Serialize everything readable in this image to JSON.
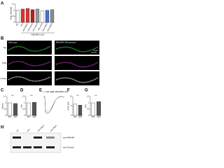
{
  "panels": {
    "A": {
      "label": "A",
      "ylabel": "Norm. amplitude",
      "categories": [
        "WT",
        "cKO",
        "cKO+RBP2",
        "cKO+ΔSH3",
        "cKO+ΔFN3",
        "cKO+SH3",
        "cKO+RBP1",
        "cKO+RBP3"
      ],
      "colors": [
        "#ffffff",
        "#e3342f",
        "#e3342f",
        "#b22222",
        "#9a9a9a",
        "#ffffff",
        "#4a6fd1",
        "#8c8c8c"
      ],
      "values": [
        1.0,
        1.1,
        1.15,
        1.05,
        1.1,
        0.95,
        1.0,
        1.05
      ],
      "ylim": [
        0,
        1.5
      ],
      "yticks": [
        0,
        0.5,
        1,
        1.5
      ],
      "group": "RIM-BP2 cKO"
    },
    "B": {
      "label": "B",
      "left_title": "Wild type",
      "right_title": "RIM-BP2 fl/fl (rescue)",
      "scale": "5 µm",
      "row_labels": [
        "Syt",
        "PSD",
        "merge"
      ]
    },
    "C": {
      "label": "C",
      "ylabel": "Puncta",
      "categories": [
        "WT",
        "cKO"
      ],
      "colors": [
        "#ffffff",
        "#555555"
      ],
      "values": [
        1.0,
        0.95
      ],
      "ylim": [
        0,
        1.5
      ],
      "yticks": [
        0,
        0.5,
        1,
        1.5
      ],
      "sig": "n.s."
    },
    "D": {
      "label": "D",
      "ylabel": "Size",
      "categories": [
        "WT",
        "cKO"
      ],
      "colors": [
        "#ffffff",
        "#555555"
      ],
      "values": [
        1.0,
        1.05
      ],
      "ylim": [
        0,
        1.5
      ],
      "yticks": [
        0,
        0.5,
        1,
        1.5
      ],
      "sig": "n.s."
    },
    "E": {
      "label": "E",
      "legend": [
        "wild type",
        "RIM-BP2 cKO"
      ]
    },
    "F": {
      "label": "F",
      "ylabel": "EPSC (nA)",
      "categories": [
        "WT",
        "cKO"
      ],
      "colors": [
        "#ffffff",
        "#555555"
      ],
      "values": [
        6,
        5.5
      ],
      "ylim": [
        0,
        10
      ],
      "yticks": [
        0,
        5,
        10
      ],
      "sig": "n.s."
    },
    "G": {
      "label": "G",
      "ylabel": "PPR",
      "categories": [
        "WT",
        "cKO"
      ],
      "colors": [
        "#ffffff",
        "#555555"
      ],
      "values": [
        1.0,
        1.1
      ],
      "ylim": [
        0,
        1.5
      ],
      "yticks": [
        0,
        0.5,
        1,
        1.5
      ],
      "sig": "n.s."
    },
    "H": {
      "label": "H",
      "lanes": [
        "WT",
        "cKO",
        "cKO+RBP2",
        "cKO+RBP1"
      ],
      "bands": [
        "anti-RIM-BP",
        "anti-Tubulin"
      ]
    }
  }
}
